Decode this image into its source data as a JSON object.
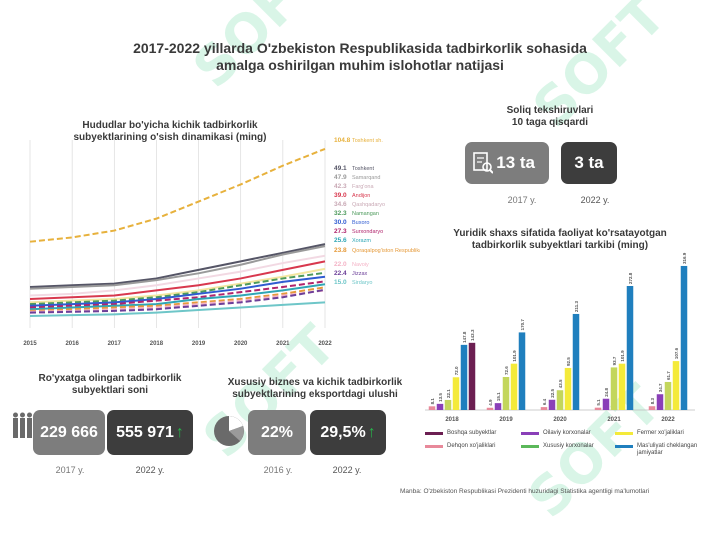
{
  "title_line1": "2017-2022 yillarda O'zbekiston Respublikasida tadbirkorlik sohasida",
  "title_line2": "amalga oshirilgan muhim islohotlar natijasi",
  "watermark": "SOFT",
  "colors": {
    "card_light": "#7d7d7d",
    "card_dark": "#3d3d3d",
    "up_arrow": "#27b24a"
  },
  "line_chart": {
    "title_line1": "Hududlar bo'yicha kichik tadbirkorlik",
    "title_line2": "subyektlarining o'sish dinamikasi (ming)"
  },
  "chart_data": [
    {
      "type": "line",
      "x": [
        "2015",
        "2016",
        "2017",
        "2018",
        "2019",
        "2020",
        "2021",
        "2022"
      ],
      "xlim": [
        0,
        7
      ],
      "ylim": [
        0,
        110
      ],
      "series": [
        {
          "name": "Toshkent sh.",
          "color": "#e7b13c",
          "dashed": true,
          "values": [
            50.5,
            53,
            57,
            64,
            74,
            84,
            95,
            104.8
          ]
        },
        {
          "name": "Toshkent",
          "color": "#555566",
          "dashed": false,
          "values": [
            24,
            25,
            26,
            29,
            34,
            39,
            44,
            49.1
          ]
        },
        {
          "name": "Samarqand",
          "color": "#9a9a9a",
          "dashed": false,
          "values": [
            23,
            24,
            25,
            28,
            32,
            37,
            43,
            47.9
          ]
        },
        {
          "name": "Farg'ona",
          "color": "#f2d9e3",
          "dashed": false,
          "values": [
            19,
            20,
            22,
            25,
            29,
            33,
            38,
            42.3
          ]
        },
        {
          "name": "Andijon",
          "color": "#d8384e",
          "dashed": false,
          "values": [
            17,
            18,
            19,
            22,
            25,
            29,
            34,
            39.0
          ]
        },
        {
          "name": "Qashqadaryo",
          "color": "#f3e6a0",
          "dashed": false,
          "values": [
            15,
            16,
            17,
            19,
            22,
            26,
            30,
            34.6
          ]
        },
        {
          "name": "Namangan",
          "color": "#4d9a5c",
          "dashed": true,
          "values": [
            14,
            15,
            16,
            18,
            21,
            25,
            29,
            32.3
          ]
        },
        {
          "name": "Buxoro",
          "color": "#2f5bd1",
          "dashed": false,
          "values": [
            13,
            14,
            15,
            17,
            20,
            23,
            27,
            30.0
          ]
        },
        {
          "name": "Surxondaryo",
          "color": "#b0246c",
          "dashed": true,
          "values": [
            12,
            13,
            14,
            16,
            18,
            21,
            24,
            27.3
          ]
        },
        {
          "name": "Xorazm",
          "color": "#2fa6b5",
          "dashed": false,
          "values": [
            11,
            12,
            13,
            14,
            17,
            19,
            22,
            25.6
          ]
        },
        {
          "name": "Qoraqalpog'iston Respublikasi",
          "color": "#e59a3a",
          "dashed": true,
          "values": [
            10,
            11,
            12,
            13,
            15,
            17,
            20,
            23.8
          ]
        },
        {
          "name": "Navoiy",
          "color": "#f4b3c6",
          "dashed": true,
          "values": [
            9.5,
            10,
            11,
            12,
            14,
            16,
            19,
            22.0
          ]
        },
        {
          "name": "Jizzax",
          "color": "#6c3f99",
          "dashed": true,
          "values": [
            9,
            9.5,
            10,
            11,
            13,
            15,
            18,
            22.4
          ]
        },
        {
          "name": "Sirdaryo",
          "color": "#6ec6c8",
          "dashed": false,
          "values": [
            7,
            7.5,
            8,
            9,
            10.5,
            12,
            13.5,
            15.0
          ]
        }
      ],
      "value_labels": [
        "104.8",
        "49.1",
        "47.9",
        "42.3",
        "39.0",
        "34.6",
        "32.3",
        "30.0",
        "27.3",
        "25.6",
        "23.8",
        "22.0",
        "22.4",
        "15.0"
      ]
    },
    {
      "type": "bar",
      "title_line1": "Yuridik shaxs sifatida faoliyat ko'rsatayotgan",
      "title_line2": "tadbirkorlik subyektlari tarkibi (ming)",
      "categories": [
        "2018",
        "2019",
        "2020",
        "2021",
        "2022"
      ],
      "ylim": [
        0,
        330
      ],
      "series": [
        {
          "name": "Dehqon xo'jaliklari",
          "color": "#e8899a",
          "values": [
            8.1,
            4.9,
            6.4,
            5.1,
            8.3
          ]
        },
        {
          "name": "Oilaviy korxonalar",
          "color": "#8a3fb8",
          "values": [
            13.5,
            15.1,
            22.5,
            24.8,
            34.7
          ]
        },
        {
          "name": "Xususiy korxonalar",
          "color": "#c3d65c",
          "values": [
            22.1,
            72.6,
            43.5,
            93.7,
            61.7
          ]
        },
        {
          "name": "Fermer xo'jaliklari",
          "color": "#f4ea3a",
          "values": [
            72.0,
            101.9,
            92.5,
            101.9,
            107.6
          ]
        },
        {
          "name": "Mas'uliyati cheklangan jamiyatlar",
          "color": "#1f7fbe",
          "values": [
            143.3,
            170.7,
            211.3,
            272.8,
            316.9
          ]
        },
        {
          "name": "Boshqa subyektlar",
          "color": "#6c1f52",
          "values": [
            147.8,
            null,
            null,
            null,
            null
          ]
        }
      ],
      "label_strings": {
        "2018": [
          "8.1",
          "13.5",
          "22.1",
          "72.0",
          "147.8",
          "143.3"
        ],
        "2019": [
          "4.9",
          "15.1",
          "72.6",
          "101.9",
          "170.7"
        ],
        "2020": [
          "6.4",
          "22.5",
          "43.5",
          "92.5",
          "211.3"
        ],
        "2021": [
          "5.1",
          "24.8",
          "93.7",
          "101.9",
          "272.8"
        ],
        "2022": [
          "8.3",
          "34.7",
          "61.7",
          "107.6",
          "316.9"
        ]
      }
    }
  ],
  "bar_legend": [
    {
      "label": "Boshqa subyektlar",
      "color": "#6c1f52"
    },
    {
      "label": "Oilaviy korxonalar",
      "color": "#8a3fb8"
    },
    {
      "label": "Fermer xo'jaliklari",
      "color": "#f4ea3a"
    },
    {
      "label": "Dehqon xo'jaliklari",
      "color": "#e8899a"
    },
    {
      "label": "Xususiy korxonalar",
      "color": "#5bb85a"
    },
    {
      "label": "Mas'uliyati cheklangan jamiyatlar",
      "color": "#1f7fbe"
    }
  ],
  "tax": {
    "title_line1": "Soliq tekshiruvlari",
    "title_line2": "10 taga qisqardi",
    "value_2017": "13 ta",
    "value_2022": "3 ta",
    "year_2017": "2017 y.",
    "year_2022": "2022 y."
  },
  "registered": {
    "title_line1": "Ro'yxatga olingan tadbirkorlik",
    "title_line2": "subyektlari soni",
    "value_2017": "229 666",
    "value_2022": "555 971",
    "year_2017": "2017 y.",
    "year_2022": "2022 y."
  },
  "export": {
    "title_line1": "Xususiy biznes va kichik tadbirkorlik",
    "title_line2": "subyektlarining eksportdagi ulushi",
    "value_2016": "22%",
    "value_2022": "29,5%",
    "year_2016": "2016 y.",
    "year_2022": "2022 y."
  },
  "source": "Manba: O'zbekiston Respublikasi Prezidenti huzuridagi Statistika agentligi ma'lumotlari"
}
